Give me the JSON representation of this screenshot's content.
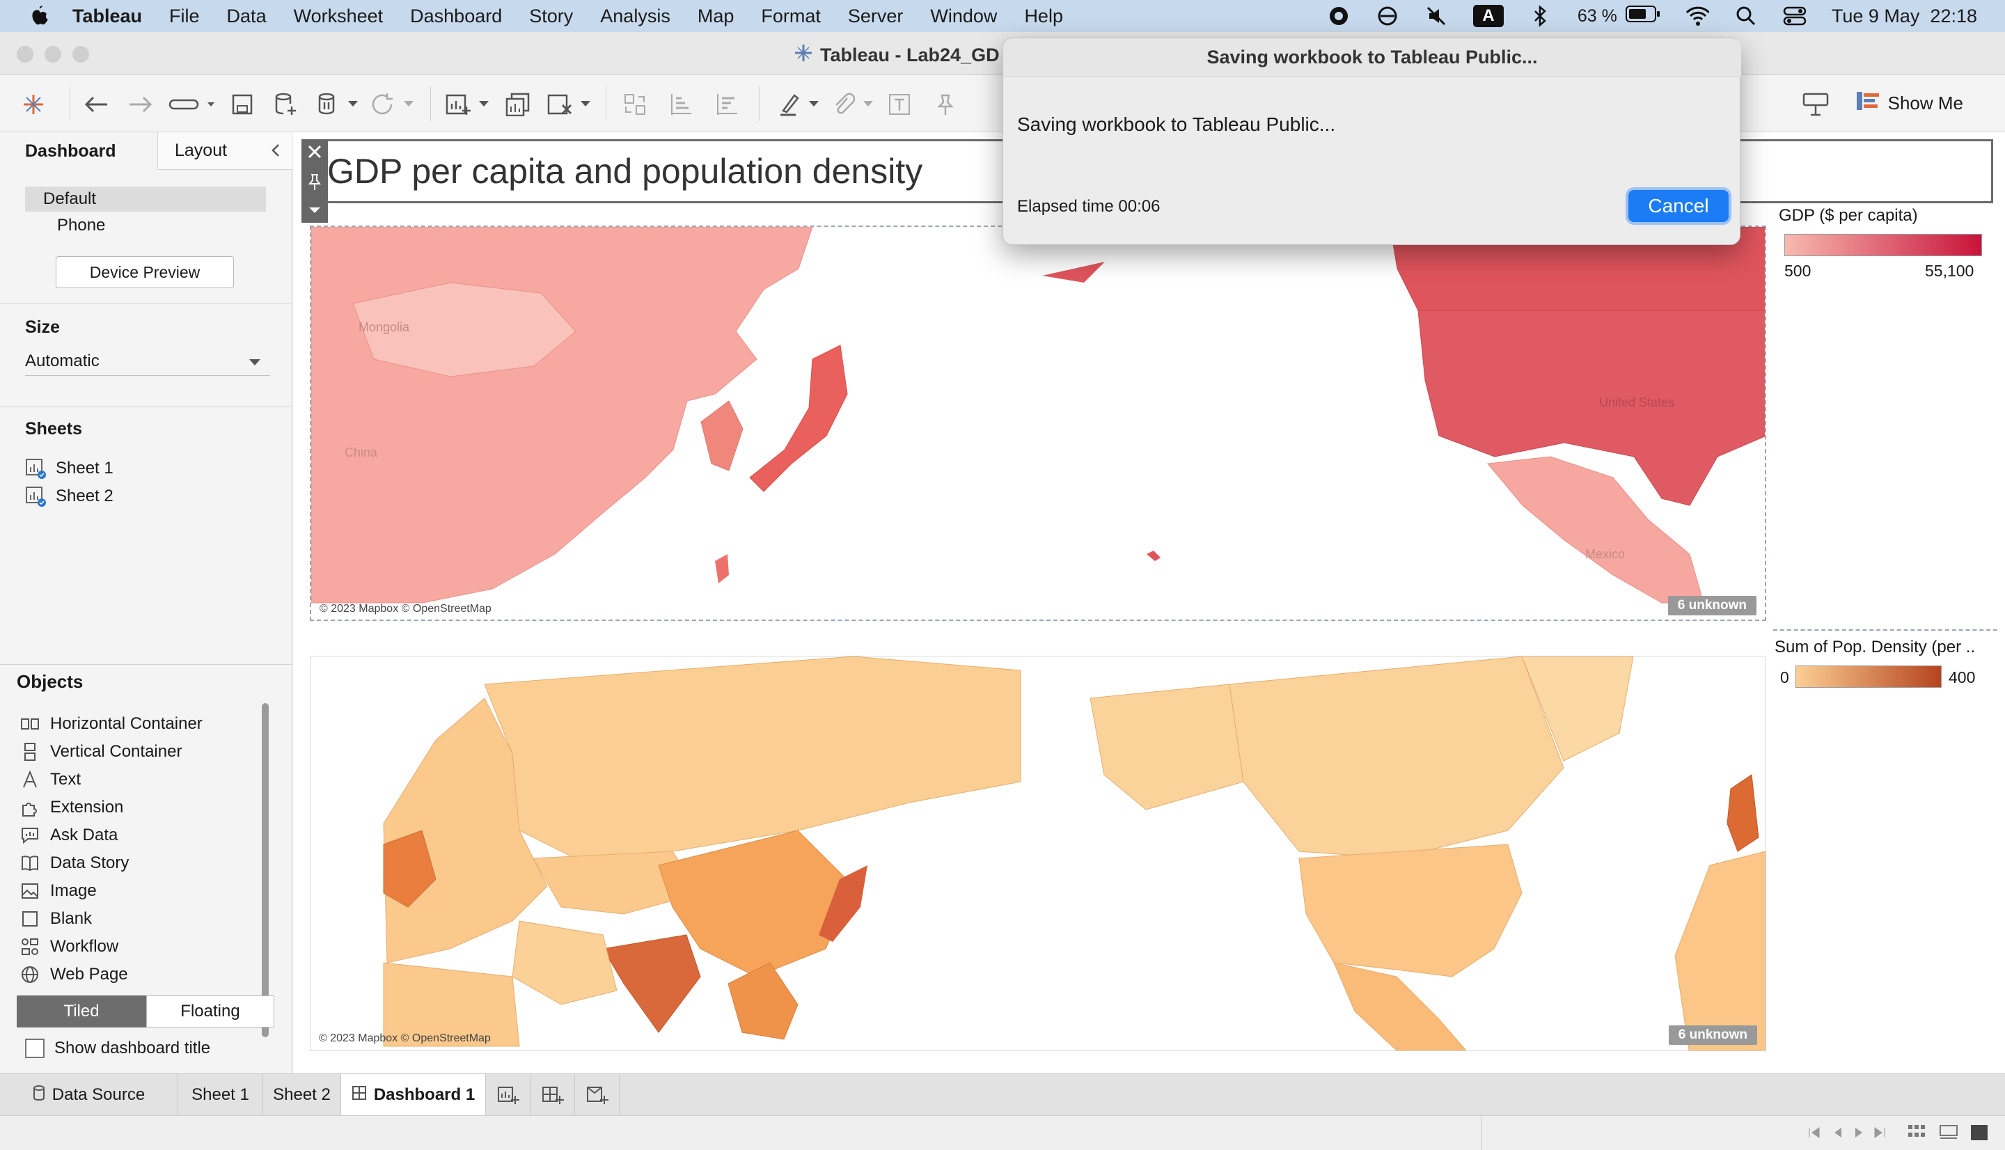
{
  "menubar": {
    "app": "Tableau",
    "items": [
      "File",
      "Data",
      "Worksheet",
      "Dashboard",
      "Story",
      "Analysis",
      "Map",
      "Format",
      "Server",
      "Window",
      "Help"
    ],
    "battery": "63 %",
    "datetime": "Tue 9 May  22:18",
    "input_badge": "A"
  },
  "window": {
    "title": "Tableau - Lab24_GD"
  },
  "toolbar": {
    "show_me": "Show Me"
  },
  "left_pane": {
    "tabs": {
      "dashboard": "Dashboard",
      "layout": "Layout"
    },
    "devices": [
      "Default",
      "Phone"
    ],
    "device_preview": "Device Preview",
    "size": {
      "title": "Size",
      "value": "Automatic"
    },
    "sheets": {
      "title": "Sheets",
      "items": [
        "Sheet 1",
        "Sheet 2"
      ]
    },
    "objects": {
      "title": "Objects",
      "items": [
        {
          "label": "Horizontal Container",
          "icon": "horizontal-container-icon"
        },
        {
          "label": "Vertical Container",
          "icon": "vertical-container-icon"
        },
        {
          "label": "Text",
          "icon": "text-icon"
        },
        {
          "label": "Extension",
          "icon": "extension-icon"
        },
        {
          "label": "Ask Data",
          "icon": "ask-data-icon"
        },
        {
          "label": "Data Story",
          "icon": "data-story-icon"
        },
        {
          "label": "Image",
          "icon": "image-icon"
        },
        {
          "label": "Blank",
          "icon": "blank-icon"
        },
        {
          "label": "Workflow",
          "icon": "workflow-icon"
        },
        {
          "label": "Web Page",
          "icon": "web-page-icon"
        }
      ]
    },
    "tiled": "Tiled",
    "floating": "Floating",
    "show_dashboard_title": "Show dashboard title"
  },
  "dashboard": {
    "title": "GDP per capita and population density",
    "map1": {
      "credit": "© 2023 Mapbox © OpenStreetMap",
      "unknown": "6 unknown",
      "labels": [
        "Mongolia",
        "China",
        "United States",
        "Mexico"
      ]
    },
    "map2": {
      "credit": "© 2023 Mapbox © OpenStreetMap",
      "unknown": "6 unknown"
    },
    "legend_gdp": {
      "title": "GDP ($ per capita)",
      "min": "500",
      "max": "55,100",
      "color_low": "#f8b9b0",
      "color_high": "#c8133a"
    },
    "legend_density": {
      "title": "Sum of Pop. Density (per ..",
      "min": "0",
      "max": "400",
      "color_low": "#fbcf93",
      "color_high": "#b5441e"
    }
  },
  "dialog": {
    "title": "Saving workbook to Tableau Public...",
    "message": "Saving workbook to Tableau Public...",
    "elapsed": "Elapsed time 00:06",
    "cancel": "Cancel"
  },
  "bottom_tabs": {
    "data_source": "Data Source",
    "sheets": [
      "Sheet 1",
      "Sheet 2"
    ],
    "dashboard": "Dashboard 1"
  }
}
